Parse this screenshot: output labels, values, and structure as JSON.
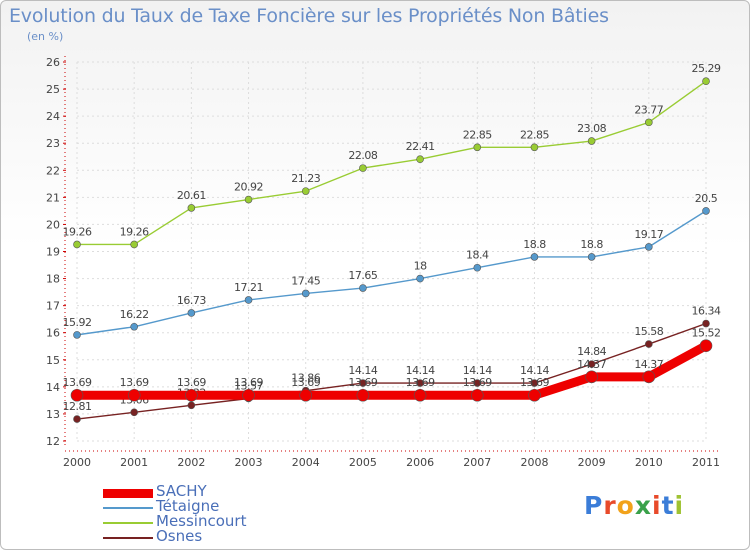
{
  "title": "Evolution du Taux de Taxe Foncière sur les Propriétés Non Bâties",
  "subtitle": "(en %)",
  "logo_text": "Proxiti",
  "chart_data": {
    "type": "line",
    "x": [
      "2000",
      "2001",
      "2002",
      "2003",
      "2004",
      "2005",
      "2006",
      "2007",
      "2008",
      "2009",
      "2010",
      "2011"
    ],
    "ylim": [
      12,
      26
    ],
    "yticks": [
      12,
      13,
      14,
      15,
      16,
      17,
      18,
      19,
      20,
      21,
      22,
      23,
      24,
      25,
      26
    ],
    "grid": true,
    "legend_position": "bottom-left",
    "series": [
      {
        "name": "Messincourt",
        "color": "#99cc33",
        "width": 1.4,
        "marker": 3.5,
        "values": [
          19.26,
          19.26,
          20.61,
          20.92,
          21.23,
          22.08,
          22.41,
          22.85,
          22.85,
          23.08,
          23.77,
          25.29
        ],
        "labels": [
          "19.26",
          "19.26",
          "20.61",
          "20.92",
          "21.23",
          "22.08",
          "22.41",
          "22.85",
          "22.85",
          "23.08",
          "23.77",
          "25.29"
        ]
      },
      {
        "name": "Tétaigne",
        "color": "#5599cc",
        "width": 1.4,
        "marker": 3.5,
        "values": [
          15.92,
          16.22,
          16.73,
          17.21,
          17.45,
          17.65,
          18,
          18.4,
          18.8,
          18.8,
          19.17,
          20.5
        ],
        "labels": [
          "15.92",
          "16.22",
          "16.73",
          "17.21",
          "17.45",
          "17.65",
          "18",
          "18.4",
          "18.8",
          "18.8",
          "19.17",
          "20.5"
        ]
      },
      {
        "name": "Osnes",
        "color": "#772222",
        "width": 1.4,
        "marker": 3.5,
        "values": [
          12.81,
          13.06,
          13.32,
          13.57,
          13.86,
          14.14,
          14.14,
          14.14,
          14.14,
          14.84,
          15.58,
          16.34
        ],
        "labels": [
          "12.81",
          "13.06",
          "13.32",
          "13.57",
          "13.86",
          "14.14",
          "14.14",
          "14.14",
          "14.14",
          "14.84",
          "15.58",
          "16.34"
        ]
      },
      {
        "name": "SACHY",
        "color": "#ee0000",
        "width": 9,
        "marker": 6,
        "values": [
          13.69,
          13.69,
          13.69,
          13.69,
          13.69,
          13.69,
          13.69,
          13.69,
          13.69,
          14.37,
          14.37,
          15.52
        ],
        "labels": [
          "13.69",
          "13.69",
          "13.69",
          "13.69",
          "13.69",
          "13.69",
          "13.69",
          "13.69",
          "13.69",
          "14.37",
          "14.37",
          "15.52"
        ]
      }
    ],
    "legend_order": [
      "SACHY",
      "Tétaigne",
      "Messincourt",
      "Osnes"
    ]
  }
}
